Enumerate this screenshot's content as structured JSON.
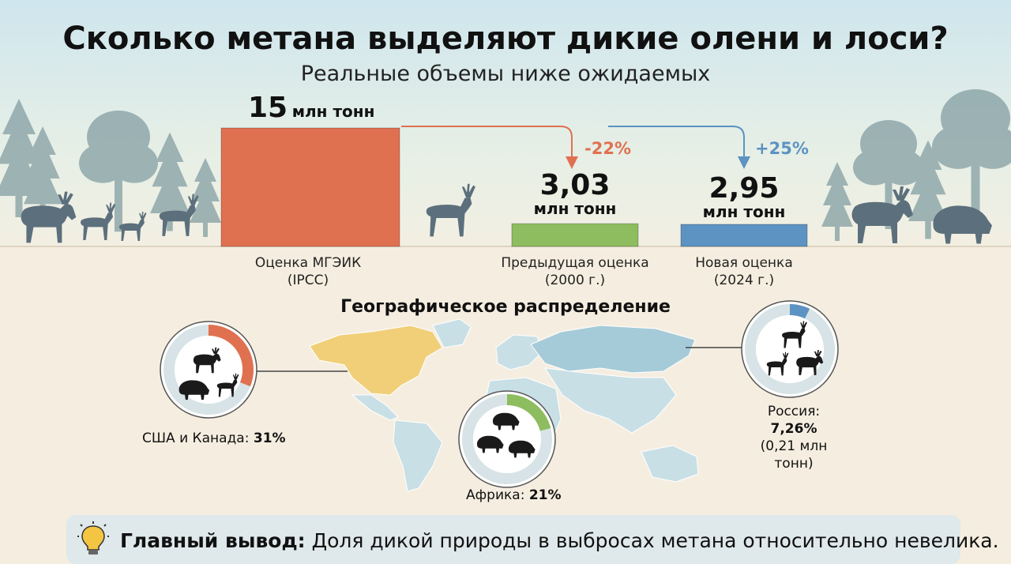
{
  "header": {
    "title": "Сколько метана выделяют дикие олени и лоси?",
    "subtitle": "Реальные объемы ниже ожидаемых"
  },
  "chart_data": [
    {
      "type": "bar",
      "title": "",
      "categories": [
        {
          "line1": "Оценка МГЭИК",
          "line2": "(IPCC)"
        },
        {
          "line1": "Предыдущая оценка",
          "line2": "(2000 г.)"
        },
        {
          "line1": "Новая оценка",
          "line2": "(2024 г.)"
        }
      ],
      "values": [
        15,
        3.03,
        2.95
      ],
      "value_labels": [
        "15",
        "3,03",
        "2,95"
      ],
      "unit": "млн тонн",
      "colors": [
        "#e07150",
        "#8dbd5e",
        "#5c93c2"
      ],
      "changes": [
        {
          "label": "-22%",
          "color": "#e07150"
        },
        {
          "label": "+25%",
          "color": "#5c93c2"
        }
      ]
    },
    {
      "type": "pie",
      "title": "Географическое распределение",
      "regions": [
        {
          "name": "США и Канада:",
          "share_label": "31%",
          "value": 31,
          "color": "#e07150"
        },
        {
          "name": "Африка:",
          "share_label": "21%",
          "value": 21,
          "color": "#8dbd5e"
        },
        {
          "name": "Россия:",
          "share_label": "7,26%",
          "detail": "(0,21 млн тонн)",
          "value": 7.26,
          "color": "#5c93c2"
        }
      ]
    }
  ],
  "takeaway": {
    "label": "Главный вывод:",
    "text": " Доля дикой природы в выбросах метана относительно невелика."
  },
  "icons": {
    "bulb": "lightbulb-icon",
    "animals": [
      "moose-icon",
      "deer-icon",
      "bison-icon",
      "reindeer-icon",
      "wildebeest-icon"
    ]
  },
  "map_colors": {
    "north_america": "#f0cf78",
    "russia": "#a6cbd8",
    "other_land": "#c9dfe6"
  }
}
